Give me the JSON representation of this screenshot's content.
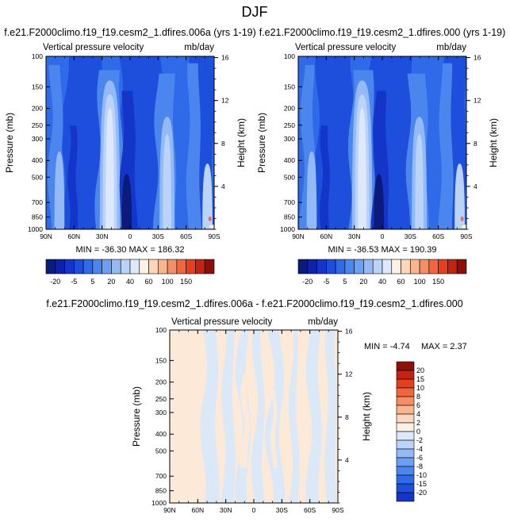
{
  "page_title": "DJF",
  "colors": {
    "blues": [
      "#0c1a7a",
      "#0d22a8",
      "#1336c8",
      "#1d4fdc",
      "#2f6be8",
      "#4b86ef",
      "#6d9ff3",
      "#93b9f6",
      "#bcd3f8",
      "#dde8fb"
    ],
    "reds": [
      "#fdf0e4",
      "#fbd7bd",
      "#f8b590",
      "#f48e65",
      "#ef6640",
      "#e4401e",
      "#c22312",
      "#8c0f08"
    ],
    "diff_neg": "#dbe8f8",
    "diff_pos": "#fde9d8"
  },
  "chart_data": [
    {
      "id": "panel-left",
      "type": "heatmap",
      "title": "f.e21.F2000climo.f19_f19.cesm2_1.dfires.006a (yrs 1-19)",
      "left_label": "Vertical pressure velocity",
      "right_label": "mb/day",
      "xlabel": "",
      "ylabel": "Pressure (mb)",
      "y2label": "Height (km)",
      "x_ticks": [
        "90N",
        "60N",
        "30N",
        "0",
        "30S",
        "60S",
        "90S"
      ],
      "y_ticks": [
        "100",
        "150",
        "200",
        "250",
        "300",
        "400",
        "500",
        "700",
        "850",
        "1000"
      ],
      "y2_ticks": [
        "16",
        "12",
        "8",
        "4"
      ],
      "stats": "MIN = -36.30   MAX = 186.32",
      "min": -36.3,
      "max": 186.32
    },
    {
      "id": "panel-right",
      "type": "heatmap",
      "title": "f.e21.F2000climo.f19_f19.cesm2_1.dfires.000 (yrs 1-19)",
      "left_label": "Vertical pressure velocity",
      "right_label": "mb/day",
      "xlabel": "",
      "ylabel": "Pressure (mb)",
      "y2label": "Height (km)",
      "x_ticks": [
        "90N",
        "60N",
        "30N",
        "0",
        "30S",
        "60S",
        "90S"
      ],
      "y_ticks": [
        "100",
        "150",
        "200",
        "250",
        "300",
        "400",
        "500",
        "700",
        "850",
        "1000"
      ],
      "y2_ticks": [
        "16",
        "12",
        "8",
        "4"
      ],
      "stats": "MIN = -36.53   MAX = 190.39",
      "min": -36.53,
      "max": 190.39
    },
    {
      "id": "panel-diff",
      "type": "heatmap",
      "title": "f.e21.F2000climo.f19_f19.cesm2_1.dfires.006a - f.e21.F2000climo.f19_f19.cesm2_1.dfires.000",
      "left_label": "Vertical pressure velocity",
      "right_label": "mb/day",
      "xlabel": "",
      "ylabel": "Pressure (mb)",
      "y2label": "Height (km)",
      "x_ticks": [
        "90N",
        "60N",
        "30N",
        "0",
        "30S",
        "60S",
        "90S"
      ],
      "y_ticks": [
        "100",
        "150",
        "200",
        "250",
        "300",
        "400",
        "500",
        "700",
        "850",
        "1000"
      ],
      "y2_ticks": [
        "16",
        "12",
        "8",
        "4"
      ],
      "stats_min": "MIN = -4.74",
      "stats_max": "MAX =  2.37",
      "min": -4.74,
      "max": 2.37
    }
  ],
  "colorbar_top": {
    "labels": [
      "-20",
      "-5",
      "5",
      "20",
      "40",
      "60",
      "100",
      "150"
    ]
  },
  "colorbar_diff": {
    "labels": [
      "20",
      "15",
      "10",
      "8",
      "6",
      "4",
      "2",
      "0",
      "-2",
      "-4",
      "-6",
      "-8",
      "-10",
      "-15",
      "-20"
    ]
  }
}
